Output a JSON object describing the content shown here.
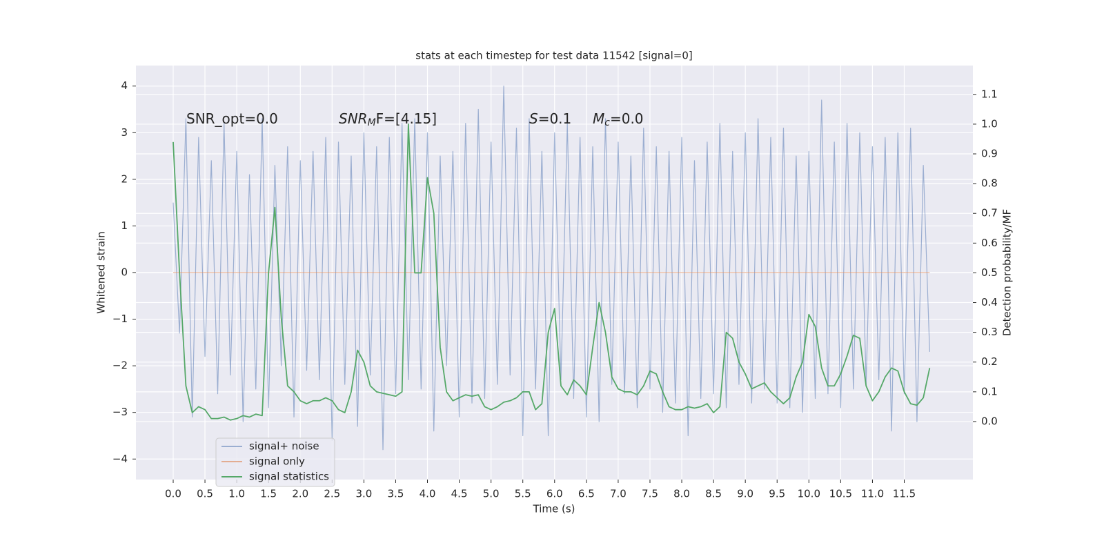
{
  "chart_data": {
    "type": "line",
    "title": "stats at each timestep for test data 11542 [signal=0]",
    "xlabel": "Time (s)",
    "ylabel": "Whitened strain",
    "y2label": "Detection probability/MF",
    "annotations": [
      [
        {
          "text": "SNR_opt=0.0"
        }
      ],
      [
        {
          "text": "SNR",
          "style": "italic"
        },
        {
          "text": "M",
          "style": "sub"
        },
        {
          "text": "F=[4.15]"
        }
      ],
      [
        {
          "text": "S",
          "style": "italic"
        },
        {
          "text": "=0.1"
        }
      ],
      [
        {
          "text": "M",
          "style": "italic"
        },
        {
          "text": "c",
          "style": "sub"
        },
        {
          "text": "=0.0"
        }
      ]
    ],
    "x": [
      0,
      0.1,
      0.2,
      0.3,
      0.4,
      0.5,
      0.6,
      0.7,
      0.8,
      0.9,
      1,
      1.1,
      1.2,
      1.3,
      1.4,
      1.5,
      1.6,
      1.7,
      1.8,
      1.9,
      2,
      2.1,
      2.2,
      2.3,
      2.4,
      2.5,
      2.6,
      2.7,
      2.8,
      2.9,
      3,
      3.1,
      3.2,
      3.3,
      3.4,
      3.5,
      3.6,
      3.7,
      3.8,
      3.9,
      4,
      4.1,
      4.2,
      4.3,
      4.4,
      4.5,
      4.6,
      4.7,
      4.8,
      4.9,
      5,
      5.1,
      5.2,
      5.3,
      5.4,
      5.5,
      5.6,
      5.7,
      5.8,
      5.9,
      6,
      6.1,
      6.2,
      6.3,
      6.4,
      6.5,
      6.6,
      6.7,
      6.8,
      6.9,
      7,
      7.1,
      7.2,
      7.3,
      7.4,
      7.5,
      7.6,
      7.7,
      7.8,
      7.9,
      8,
      8.1,
      8.2,
      8.3,
      8.4,
      8.5,
      8.6,
      8.7,
      8.8,
      8.9,
      9,
      9.1,
      9.2,
      9.3,
      9.4,
      9.5,
      9.6,
      9.7,
      9.8,
      9.9,
      10,
      10.1,
      10.2,
      10.3,
      10.4,
      10.5,
      10.6,
      10.7,
      10.8,
      10.9,
      11,
      11.1,
      11.2,
      11.3,
      11.4,
      11.5,
      11.6,
      11.7,
      11.8,
      11.9
    ],
    "series": [
      {
        "name": "signal+ noise",
        "color": "#4c72b0",
        "opacity": 0.5,
        "values": [
          1.5,
          -1.3,
          3.3,
          -3.1,
          2.9,
          -1.8,
          2.4,
          -2.6,
          3.2,
          -2.2,
          2.6,
          -3.2,
          2.1,
          -2.5,
          3.3,
          -2.9,
          2.3,
          -2.0,
          2.7,
          -3.1,
          2.4,
          -2.1,
          2.6,
          -2.3,
          2.9,
          -3.6,
          2.8,
          -2.4,
          2.5,
          -3.3,
          3.0,
          -2.2,
          2.7,
          -3.8,
          2.9,
          -2.6,
          3.2,
          -2.3,
          3.3,
          -2.5,
          3.0,
          -3.4,
          2.5,
          -2.0,
          2.6,
          -3.1,
          3.2,
          -2.8,
          3.5,
          -2.7,
          2.8,
          -2.4,
          4.0,
          -2.2,
          3.1,
          -3.5,
          3.3,
          -2.5,
          2.6,
          -3.5,
          3.0,
          -2.3,
          3.2,
          -2.7,
          2.9,
          -3.1,
          2.7,
          -3.2,
          3.3,
          -2.4,
          2.8,
          -2.6,
          2.5,
          -2.9,
          3.1,
          -2.5,
          2.7,
          -3.0,
          2.6,
          -2.8,
          2.9,
          -3.5,
          2.4,
          -2.7,
          2.8,
          -2.6,
          3.2,
          -2.9,
          2.6,
          -2.4,
          3.0,
          -2.8,
          3.3,
          -2.5,
          2.9,
          -2.8,
          3.1,
          -2.9,
          2.5,
          -3.0,
          2.6,
          -2.7,
          3.7,
          -2.6,
          2.8,
          -2.9,
          3.2,
          -2.5,
          3.0,
          -2.4,
          2.7,
          -2.3,
          2.9,
          -3.4,
          3.0,
          -2.6,
          3.1,
          -3.2,
          2.3,
          -1.7
        ]
      },
      {
        "name": "signal only",
        "color": "#dd8452",
        "opacity": 0.6,
        "values": [
          0,
          0,
          0,
          0,
          0,
          0,
          0,
          0,
          0,
          0,
          0,
          0,
          0,
          0,
          0,
          0,
          0,
          0,
          0,
          0,
          0,
          0,
          0,
          0,
          0,
          0,
          0,
          0,
          0,
          0,
          0,
          0,
          0,
          0,
          0,
          0,
          0,
          0,
          0,
          0,
          0,
          0,
          0,
          0,
          0,
          0,
          0,
          0,
          0,
          0,
          0,
          0,
          0,
          0,
          0,
          0,
          0,
          0,
          0,
          0,
          0,
          0,
          0,
          0,
          0,
          0,
          0,
          0,
          0,
          0,
          0,
          0,
          0,
          0,
          0,
          0,
          0,
          0,
          0,
          0,
          0,
          0,
          0,
          0,
          0,
          0,
          0,
          0,
          0,
          0,
          0,
          0,
          0,
          0,
          0,
          0,
          0,
          0,
          0,
          0,
          0,
          0,
          0,
          0,
          0,
          0,
          0,
          0,
          0,
          0,
          0,
          0,
          0,
          0,
          0,
          0,
          0,
          0,
          0,
          0
        ]
      },
      {
        "name": "signal statistics",
        "color": "#55a868",
        "opacity": 1,
        "axis": "y2",
        "values": [
          0.94,
          0.5,
          0.12,
          0.03,
          0.05,
          0.04,
          0.01,
          0.01,
          0.015,
          0.005,
          0.01,
          0.02,
          0.015,
          0.025,
          0.02,
          0.5,
          0.72,
          0.35,
          0.12,
          0.1,
          0.07,
          0.06,
          0.07,
          0.07,
          0.08,
          0.07,
          0.04,
          0.03,
          0.1,
          0.24,
          0.2,
          0.12,
          0.1,
          0.095,
          0.09,
          0.085,
          0.1,
          1.0,
          0.5,
          0.5,
          0.82,
          0.7,
          0.25,
          0.1,
          0.07,
          0.08,
          0.09,
          0.085,
          0.09,
          0.05,
          0.04,
          0.05,
          0.065,
          0.07,
          0.08,
          0.1,
          0.1,
          0.04,
          0.06,
          0.3,
          0.38,
          0.12,
          0.09,
          0.14,
          0.12,
          0.09,
          0.25,
          0.4,
          0.3,
          0.15,
          0.11,
          0.1,
          0.1,
          0.09,
          0.12,
          0.17,
          0.16,
          0.1,
          0.05,
          0.04,
          0.04,
          0.05,
          0.045,
          0.05,
          0.06,
          0.03,
          0.05,
          0.3,
          0.28,
          0.2,
          0.16,
          0.11,
          0.12,
          0.13,
          0.1,
          0.08,
          0.06,
          0.08,
          0.15,
          0.2,
          0.36,
          0.32,
          0.18,
          0.12,
          0.12,
          0.16,
          0.22,
          0.29,
          0.28,
          0.12,
          0.07,
          0.1,
          0.15,
          0.18,
          0.17,
          0.1,
          0.06,
          0.055,
          0.08,
          0.18
        ]
      }
    ],
    "xlim": [
      -0.586,
      12.58
    ],
    "ylim": [
      -4.44,
      4.44
    ],
    "y2lim": [
      -0.195,
      1.197
    ],
    "xticks": [
      {
        "value": 0,
        "label": "0.0"
      },
      0.5,
      {
        "value": 1,
        "label": "1.0"
      },
      1.5,
      {
        "value": 2,
        "label": "2.0"
      },
      2.5,
      {
        "value": 3,
        "label": "3.0"
      },
      3.5,
      {
        "value": 4,
        "label": "4.0"
      },
      4.5,
      {
        "value": 5,
        "label": "5.0"
      },
      5.5,
      {
        "value": 6,
        "label": "6.0"
      },
      6.5,
      {
        "value": 7,
        "label": "7.0"
      },
      7.5,
      {
        "value": 8,
        "label": "8.0"
      },
      8.5,
      {
        "value": 9,
        "label": "9.0"
      },
      9.5,
      {
        "value": 10,
        "label": "10.0"
      },
      10.5,
      {
        "value": 11,
        "label": "11.0"
      },
      11.5
    ],
    "yticks": [
      {
        "value": -4,
        "label": "−4"
      },
      {
        "value": -3,
        "label": "−3"
      },
      {
        "value": -2,
        "label": "−2"
      },
      {
        "value": -1,
        "label": "−1"
      },
      0,
      1,
      2,
      3,
      4
    ],
    "y2ticks": [
      {
        "value": 0,
        "label": "0.0"
      },
      0.1,
      0.2,
      0.3,
      0.4,
      0.5,
      0.6,
      0.7,
      0.8,
      0.9,
      {
        "value": 1,
        "label": "1.0"
      },
      1.1
    ],
    "grid": true,
    "legend_loc": "lower left"
  }
}
